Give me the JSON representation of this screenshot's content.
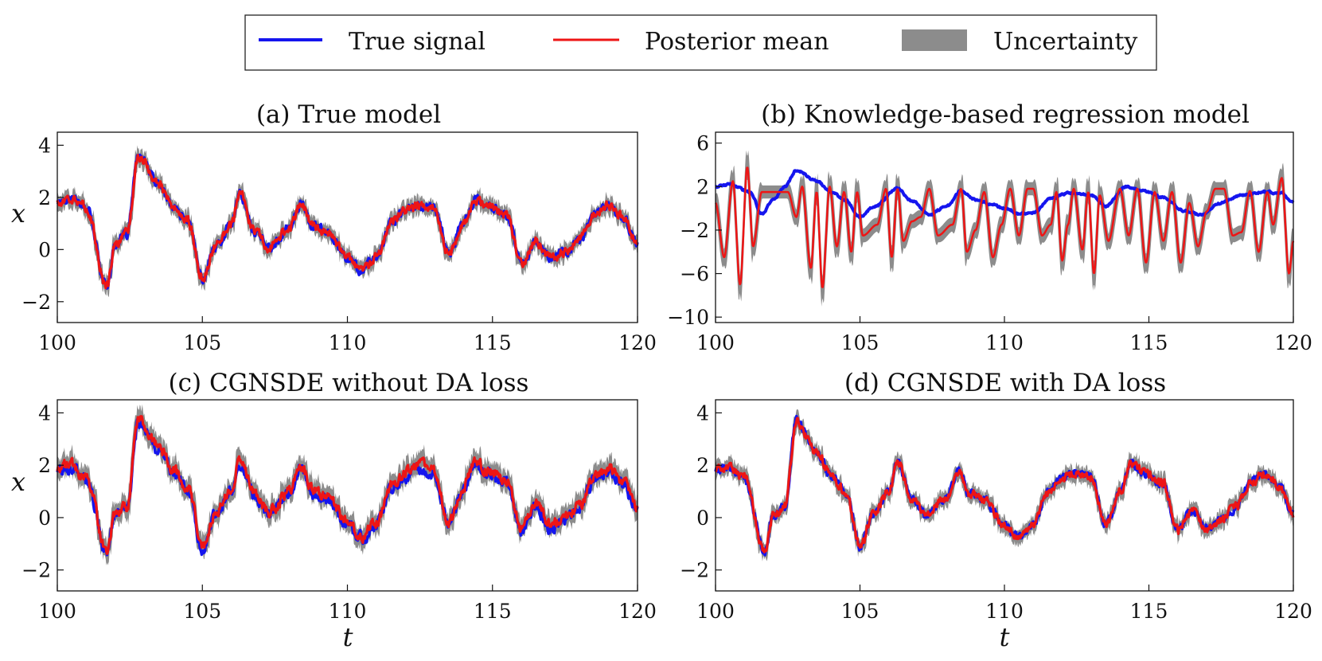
{
  "legend": {
    "items": [
      {
        "label": "True signal",
        "kind": "line",
        "color": "#1515ee"
      },
      {
        "label": "Posterior mean",
        "kind": "line",
        "color": "#ee1515"
      },
      {
        "label": "Uncertainty",
        "kind": "band",
        "color": "#8c8c8c"
      }
    ]
  },
  "chart_data": [
    {
      "id": "a",
      "type": "line",
      "title": "(a) True model",
      "xlabel": "",
      "ylabel": "x",
      "xlim": [
        100,
        120
      ],
      "ylim": [
        -2.8,
        4.5
      ],
      "xticks": [
        100,
        105,
        110,
        115,
        120
      ],
      "xtick_labels": [
        "100",
        "105",
        "110",
        "115",
        "120"
      ],
      "yticks": [
        -2,
        0,
        2,
        4
      ],
      "ytick_labels": [
        "−2",
        "0",
        "2",
        "4"
      ],
      "noise": 0.14,
      "mean_offset": 0.0,
      "band_halfwidth": 0.22,
      "series": [
        {
          "name": "True signal",
          "keyframes": [
            [
              100,
              1.8
            ],
            [
              100.5,
              2.0
            ],
            [
              101,
              1.6
            ],
            [
              101.7,
              -1.4
            ],
            [
              102,
              0.2
            ],
            [
              102.4,
              0.6
            ],
            [
              102.8,
              3.6
            ],
            [
              103.5,
              2.5
            ],
            [
              104,
              1.6
            ],
            [
              104.5,
              1.1
            ],
            [
              105,
              -1.1
            ],
            [
              105.5,
              0.2
            ],
            [
              106,
              1.0
            ],
            [
              106.3,
              2.1
            ],
            [
              106.8,
              0.7
            ],
            [
              107.3,
              0.1
            ],
            [
              108,
              0.8
            ],
            [
              108.4,
              1.8
            ],
            [
              108.8,
              0.9
            ],
            [
              109.3,
              0.7
            ],
            [
              110,
              -0.3
            ],
            [
              110.5,
              -0.8
            ],
            [
              111,
              -0.3
            ],
            [
              111.5,
              1.0
            ],
            [
              112,
              1.5
            ],
            [
              112.5,
              1.7
            ],
            [
              113,
              1.6
            ],
            [
              113.5,
              -0.2
            ],
            [
              114,
              1.0
            ],
            [
              114.4,
              1.9
            ],
            [
              114.8,
              1.7
            ],
            [
              115.5,
              1.3
            ],
            [
              116,
              -0.5
            ],
            [
              116.5,
              0.3
            ],
            [
              117,
              -0.3
            ],
            [
              117.5,
              -0.1
            ],
            [
              118,
              0.4
            ],
            [
              118.5,
              1.3
            ],
            [
              119,
              1.7
            ],
            [
              119.5,
              1.2
            ],
            [
              120,
              0.2
            ]
          ]
        },
        {
          "name": "Posterior mean"
        },
        {
          "name": "Uncertainty"
        }
      ]
    },
    {
      "id": "b",
      "type": "line",
      "title": "(b) Knowledge-based regression model",
      "xlabel": "",
      "ylabel": "",
      "xlim": [
        100,
        120
      ],
      "ylim": [
        -10.5,
        7
      ],
      "xticks": [
        100,
        105,
        110,
        115,
        120
      ],
      "xtick_labels": [
        "100",
        "105",
        "110",
        "115",
        "120"
      ],
      "yticks": [
        -10,
        -6,
        -2,
        2,
        6
      ],
      "ytick_labels": [
        "−10",
        "−6",
        "−2",
        "2",
        "6"
      ],
      "noise": 0.12,
      "band_halfwidth": 0.6,
      "series": [
        {
          "name": "True signal",
          "keyframes": [
            [
              100,
              2.0
            ],
            [
              100.5,
              2.2
            ],
            [
              101.2,
              1.5
            ],
            [
              101.6,
              -0.5
            ],
            [
              102,
              0.8
            ],
            [
              102.4,
              2.0
            ],
            [
              102.8,
              3.5
            ],
            [
              103.5,
              2.5
            ],
            [
              104,
              1.5
            ],
            [
              104.5,
              0.8
            ],
            [
              105,
              -0.8
            ],
            [
              105.5,
              0.2
            ],
            [
              106.3,
              1.8
            ],
            [
              106.8,
              0.7
            ],
            [
              107.4,
              -0.6
            ],
            [
              108,
              0.2
            ],
            [
              108.5,
              1.6
            ],
            [
              109,
              0.8
            ],
            [
              109.5,
              0.4
            ],
            [
              110,
              0.0
            ],
            [
              110.5,
              -0.5
            ],
            [
              111,
              -0.4
            ],
            [
              111.6,
              0.9
            ],
            [
              112.2,
              1.4
            ],
            [
              113,
              1.2
            ],
            [
              113.5,
              0.2
            ],
            [
              114.2,
              2.0
            ],
            [
              114.8,
              1.6
            ],
            [
              115.5,
              1.0
            ],
            [
              116.2,
              -0.2
            ],
            [
              116.8,
              -0.6
            ],
            [
              117.5,
              0.5
            ],
            [
              118.2,
              1.2
            ],
            [
              119,
              1.5
            ],
            [
              119.6,
              1.4
            ],
            [
              120,
              0.5
            ]
          ]
        },
        {
          "name": "Posterior mean",
          "keyframes": [
            [
              100,
              0.5
            ],
            [
              100.3,
              -4.5
            ],
            [
              100.6,
              2.5
            ],
            [
              100.85,
              -7.0
            ],
            [
              101.1,
              3.8
            ],
            [
              101.3,
              -3.5
            ],
            [
              101.6,
              1.5
            ],
            [
              102,
              1.5
            ],
            [
              102.5,
              1.5
            ],
            [
              102.8,
              -0.8
            ],
            [
              103,
              2.0
            ],
            [
              103.3,
              -5.5
            ],
            [
              103.5,
              1.5
            ],
            [
              103.7,
              -7.3
            ],
            [
              103.95,
              2.0
            ],
            [
              104.2,
              -3.5
            ],
            [
              104.45,
              1.5
            ],
            [
              104.7,
              -4.0
            ],
            [
              104.9,
              1.5
            ],
            [
              105.1,
              -2.5
            ],
            [
              105.6,
              -1.5
            ],
            [
              105.9,
              1.8
            ],
            [
              106.1,
              -4.5
            ],
            [
              106.3,
              1.8
            ],
            [
              106.5,
              -3.0
            ],
            [
              106.8,
              -1.2
            ],
            [
              107.1,
              -0.8
            ],
            [
              107.4,
              1.8
            ],
            [
              107.7,
              -2.5
            ],
            [
              108.2,
              -1.5
            ],
            [
              108.5,
              1.8
            ],
            [
              108.7,
              -4.0
            ],
            [
              109,
              -2.0
            ],
            [
              109.3,
              1.5
            ],
            [
              109.6,
              -4.5
            ],
            [
              109.9,
              -1.5
            ],
            [
              110.2,
              1.8
            ],
            [
              110.5,
              -2.5
            ],
            [
              110.8,
              1.8
            ],
            [
              111,
              1.8
            ],
            [
              111.3,
              -2.5
            ],
            [
              111.6,
              -1.5
            ],
            [
              111.8,
              1.5
            ],
            [
              112,
              -4.8
            ],
            [
              112.2,
              -1.5
            ],
            [
              112.4,
              1.8
            ],
            [
              112.7,
              -3.8
            ],
            [
              112.9,
              1.5
            ],
            [
              113.1,
              -6.0
            ],
            [
              113.3,
              1.2
            ],
            [
              113.6,
              -3.0
            ],
            [
              114,
              1.8
            ],
            [
              114.3,
              -2.5
            ],
            [
              114.6,
              1.8
            ],
            [
              114.9,
              -5.0
            ],
            [
              115.2,
              1.5
            ],
            [
              115.5,
              -3.0
            ],
            [
              115.8,
              1.5
            ],
            [
              116.1,
              -5.0
            ],
            [
              116.4,
              0.5
            ],
            [
              116.7,
              -3.5
            ],
            [
              117,
              -0.3
            ],
            [
              117.3,
              1.8
            ],
            [
              117.6,
              1.8
            ],
            [
              117.9,
              -2.5
            ],
            [
              118.2,
              -2.2
            ],
            [
              118.5,
              1.6
            ],
            [
              118.8,
              -4.0
            ],
            [
              119.1,
              1.5
            ],
            [
              119.3,
              -1.5
            ],
            [
              119.6,
              2.8
            ],
            [
              119.85,
              -6.0
            ],
            [
              120,
              -3.0
            ]
          ]
        },
        {
          "name": "Uncertainty"
        }
      ]
    },
    {
      "id": "c",
      "type": "line",
      "title": "(c) CGNSDE without DA loss",
      "xlabel": "t",
      "ylabel": "x",
      "xlim": [
        100,
        120
      ],
      "ylim": [
        -2.8,
        4.5
      ],
      "xticks": [
        100,
        105,
        110,
        115,
        120
      ],
      "xtick_labels": [
        "100",
        "105",
        "110",
        "115",
        "120"
      ],
      "yticks": [
        -2,
        0,
        2,
        4
      ],
      "ytick_labels": [
        "−2",
        "0",
        "2",
        "4"
      ],
      "noise": 0.17,
      "mean_offset": 0.1,
      "band_halfwidth": 0.3,
      "series": [
        {
          "name": "True signal",
          "keyframes": [
            [
              100,
              1.8
            ],
            [
              100.5,
              1.9
            ],
            [
              101,
              1.4
            ],
            [
              101.7,
              -1.3
            ],
            [
              102,
              0.1
            ],
            [
              102.4,
              0.3
            ],
            [
              102.8,
              3.7
            ],
            [
              103.5,
              2.6
            ],
            [
              104,
              1.7
            ],
            [
              104.5,
              1.1
            ],
            [
              105,
              -1.2
            ],
            [
              105.5,
              0.2
            ],
            [
              106,
              1.0
            ],
            [
              106.3,
              2.1
            ],
            [
              106.8,
              0.8
            ],
            [
              107.3,
              0.1
            ],
            [
              108,
              0.9
            ],
            [
              108.4,
              1.9
            ],
            [
              108.8,
              0.9
            ],
            [
              109.3,
              0.7
            ],
            [
              110,
              -0.3
            ],
            [
              110.5,
              -0.8
            ],
            [
              111,
              -0.3
            ],
            [
              111.5,
              1.1
            ],
            [
              112,
              1.6
            ],
            [
              112.5,
              1.9
            ],
            [
              113,
              1.7
            ],
            [
              113.5,
              -0.3
            ],
            [
              114,
              1.1
            ],
            [
              114.4,
              2.1
            ],
            [
              114.8,
              1.7
            ],
            [
              115.5,
              1.3
            ],
            [
              116,
              -0.5
            ],
            [
              116.5,
              0.4
            ],
            [
              117,
              -0.4
            ],
            [
              117.5,
              -0.1
            ],
            [
              118,
              0.4
            ],
            [
              118.5,
              1.4
            ],
            [
              119,
              1.8
            ],
            [
              119.5,
              1.3
            ],
            [
              120,
              0.2
            ]
          ]
        },
        {
          "name": "Posterior mean"
        },
        {
          "name": "Uncertainty"
        }
      ]
    },
    {
      "id": "d",
      "type": "line",
      "title": "(d) CGNSDE with DA loss",
      "xlabel": "t",
      "ylabel": "",
      "xlim": [
        100,
        120
      ],
      "ylim": [
        -2.8,
        4.5
      ],
      "xticks": [
        100,
        105,
        110,
        115,
        120
      ],
      "xtick_labels": [
        "100",
        "105",
        "110",
        "115",
        "120"
      ],
      "yticks": [
        -2,
        0,
        2,
        4
      ],
      "ytick_labels": [
        "−2",
        "0",
        "2",
        "4"
      ],
      "noise": 0.13,
      "mean_offset": 0.0,
      "band_halfwidth": 0.22,
      "series": [
        {
          "name": "True signal",
          "keyframes": [
            [
              100,
              1.8
            ],
            [
              100.5,
              1.9
            ],
            [
              101,
              1.5
            ],
            [
              101.7,
              -1.3
            ],
            [
              102,
              0.1
            ],
            [
              102.4,
              0.4
            ],
            [
              102.8,
              3.7
            ],
            [
              103.5,
              2.5
            ],
            [
              104,
              1.6
            ],
            [
              104.5,
              1.0
            ],
            [
              105,
              -1.1
            ],
            [
              105.5,
              0.2
            ],
            [
              106,
              1.0
            ],
            [
              106.3,
              2.1
            ],
            [
              106.8,
              0.7
            ],
            [
              107.3,
              0.1
            ],
            [
              108,
              0.8
            ],
            [
              108.4,
              1.8
            ],
            [
              108.8,
              0.9
            ],
            [
              109.3,
              0.7
            ],
            [
              110,
              -0.3
            ],
            [
              110.5,
              -0.8
            ],
            [
              111,
              -0.3
            ],
            [
              111.5,
              1.0
            ],
            [
              112,
              1.5
            ],
            [
              112.5,
              1.7
            ],
            [
              113,
              1.6
            ],
            [
              113.5,
              -0.3
            ],
            [
              114,
              1.0
            ],
            [
              114.4,
              2.1
            ],
            [
              114.8,
              1.7
            ],
            [
              115.5,
              1.3
            ],
            [
              116,
              -0.5
            ],
            [
              116.5,
              0.3
            ],
            [
              117,
              -0.4
            ],
            [
              117.5,
              -0.1
            ],
            [
              118,
              0.4
            ],
            [
              118.5,
              1.3
            ],
            [
              119,
              1.7
            ],
            [
              119.5,
              1.2
            ],
            [
              120,
              0.2
            ]
          ]
        },
        {
          "name": "Posterior mean"
        },
        {
          "name": "Uncertainty"
        }
      ]
    }
  ]
}
